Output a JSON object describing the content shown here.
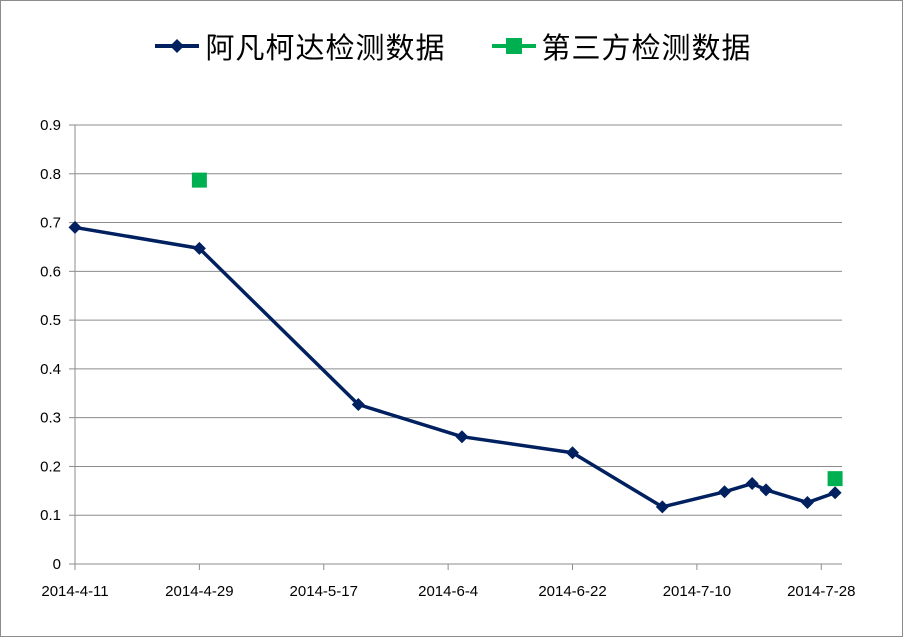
{
  "chart_data": {
    "type": "line",
    "title": "",
    "xlabel": "",
    "ylabel": "",
    "x_axis": {
      "kind": "date",
      "range": [
        "2014-04-11",
        "2014-07-31"
      ],
      "tick_labels": [
        "2014-4-11",
        "2014-4-29",
        "2014-5-17",
        "2014-6-4",
        "2014-6-22",
        "2014-7-10",
        "2014-7-28"
      ],
      "tick_dates": [
        "2014-04-11",
        "2014-04-29",
        "2014-05-17",
        "2014-06-04",
        "2014-06-22",
        "2014-07-10",
        "2014-07-28"
      ]
    },
    "y_axis": {
      "range": [
        0,
        0.9
      ],
      "tick_labels": [
        "0",
        "0.1",
        "0.2",
        "0.3",
        "0.4",
        "0.5",
        "0.6",
        "0.7",
        "0.8",
        "0.9"
      ],
      "tick_values": [
        0,
        0.1,
        0.2,
        0.3,
        0.4,
        0.5,
        0.6,
        0.7,
        0.8,
        0.9
      ]
    },
    "grid": "horizontal",
    "legend_position": "top",
    "series": [
      {
        "name": "阿凡柯达检测数据",
        "color": "#002060",
        "marker": "diamond",
        "line": true,
        "points": [
          {
            "date": "2014-04-11",
            "value": 0.69
          },
          {
            "date": "2014-04-29",
            "value": 0.647
          },
          {
            "date": "2014-05-22",
            "value": 0.327
          },
          {
            "date": "2014-06-06",
            "value": 0.261
          },
          {
            "date": "2014-06-22",
            "value": 0.228
          },
          {
            "date": "2014-07-05",
            "value": 0.117
          },
          {
            "date": "2014-07-14",
            "value": 0.148
          },
          {
            "date": "2014-07-18",
            "value": 0.165
          },
          {
            "date": "2014-07-20",
            "value": 0.152
          },
          {
            "date": "2014-07-26",
            "value": 0.126
          },
          {
            "date": "2014-07-30",
            "value": 0.146
          }
        ]
      },
      {
        "name": "第三方检测数据",
        "color": "#00B050",
        "marker": "square",
        "line": false,
        "points": [
          {
            "date": "2014-04-29",
            "value": 0.787
          },
          {
            "date": "2014-07-30",
            "value": 0.175
          }
        ]
      }
    ]
  }
}
